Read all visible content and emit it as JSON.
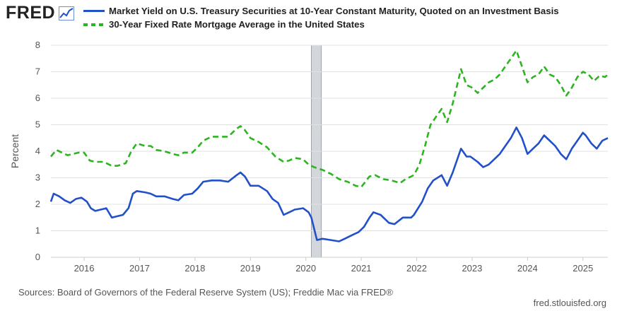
{
  "branding": {
    "logo_text": "FRED",
    "logo_icon": "line-chart-icon"
  },
  "legend": [
    {
      "label": "Market Yield on U.S. Treasury Securities at 10-Year Constant Maturity, Quoted on an Investment Basis",
      "style": "solid",
      "color": "#2150c8"
    },
    {
      "label": "30-Year Fixed Rate Mortgage Average in the United States",
      "style": "dashed",
      "color": "#2bb51f"
    }
  ],
  "footer": {
    "sources": "Sources: Board of Governors of the Federal Reserve System (US); Freddie Mac via FRED®",
    "site": "fred.stlouisfed.org"
  },
  "chart_data": {
    "type": "line",
    "ylabel": "Percent",
    "ylim": [
      0,
      8
    ],
    "xlim": [
      2015.4,
      2025.45
    ],
    "yticks": [
      0,
      1,
      2,
      3,
      4,
      5,
      6,
      7,
      8
    ],
    "xticks": [
      2016,
      2017,
      2018,
      2019,
      2020,
      2021,
      2022,
      2023,
      2024,
      2025
    ],
    "grid": "horizontal",
    "legend_position": "top",
    "recession_shading": [
      2020.1,
      2020.28
    ],
    "series": [
      {
        "name": "Market Yield on U.S. Treasury Securities at 10-Year Constant Maturity, Quoted on an Investment Basis",
        "color": "#2150c8",
        "style": "solid",
        "points": [
          [
            2015.4,
            2.1
          ],
          [
            2015.45,
            2.4
          ],
          [
            2015.55,
            2.3
          ],
          [
            2015.65,
            2.15
          ],
          [
            2015.75,
            2.05
          ],
          [
            2015.85,
            2.2
          ],
          [
            2015.95,
            2.25
          ],
          [
            2016.05,
            2.1
          ],
          [
            2016.12,
            1.85
          ],
          [
            2016.2,
            1.75
          ],
          [
            2016.3,
            1.8
          ],
          [
            2016.4,
            1.85
          ],
          [
            2016.5,
            1.5
          ],
          [
            2016.6,
            1.55
          ],
          [
            2016.7,
            1.6
          ],
          [
            2016.8,
            1.85
          ],
          [
            2016.88,
            2.4
          ],
          [
            2016.95,
            2.5
          ],
          [
            2017.1,
            2.45
          ],
          [
            2017.2,
            2.4
          ],
          [
            2017.3,
            2.3
          ],
          [
            2017.45,
            2.3
          ],
          [
            2017.6,
            2.2
          ],
          [
            2017.7,
            2.15
          ],
          [
            2017.8,
            2.35
          ],
          [
            2017.95,
            2.4
          ],
          [
            2018.05,
            2.6
          ],
          [
            2018.15,
            2.85
          ],
          [
            2018.3,
            2.9
          ],
          [
            2018.45,
            2.9
          ],
          [
            2018.6,
            2.85
          ],
          [
            2018.75,
            3.1
          ],
          [
            2018.82,
            3.2
          ],
          [
            2018.9,
            3.05
          ],
          [
            2019.0,
            2.7
          ],
          [
            2019.15,
            2.7
          ],
          [
            2019.3,
            2.5
          ],
          [
            2019.4,
            2.2
          ],
          [
            2019.5,
            2.05
          ],
          [
            2019.6,
            1.6
          ],
          [
            2019.7,
            1.7
          ],
          [
            2019.8,
            1.8
          ],
          [
            2019.95,
            1.85
          ],
          [
            2020.05,
            1.7
          ],
          [
            2020.1,
            1.5
          ],
          [
            2020.2,
            0.65
          ],
          [
            2020.3,
            0.7
          ],
          [
            2020.45,
            0.65
          ],
          [
            2020.6,
            0.6
          ],
          [
            2020.7,
            0.7
          ],
          [
            2020.85,
            0.85
          ],
          [
            2020.95,
            0.95
          ],
          [
            2021.05,
            1.15
          ],
          [
            2021.15,
            1.5
          ],
          [
            2021.22,
            1.7
          ],
          [
            2021.35,
            1.6
          ],
          [
            2021.5,
            1.3
          ],
          [
            2021.6,
            1.25
          ],
          [
            2021.75,
            1.5
          ],
          [
            2021.9,
            1.5
          ],
          [
            2021.95,
            1.6
          ],
          [
            2022.1,
            2.1
          ],
          [
            2022.2,
            2.6
          ],
          [
            2022.3,
            2.9
          ],
          [
            2022.45,
            3.1
          ],
          [
            2022.55,
            2.7
          ],
          [
            2022.65,
            3.2
          ],
          [
            2022.8,
            4.1
          ],
          [
            2022.9,
            3.8
          ],
          [
            2022.97,
            3.8
          ],
          [
            2023.1,
            3.6
          ],
          [
            2023.2,
            3.4
          ],
          [
            2023.3,
            3.5
          ],
          [
            2023.4,
            3.7
          ],
          [
            2023.5,
            3.9
          ],
          [
            2023.6,
            4.2
          ],
          [
            2023.7,
            4.5
          ],
          [
            2023.8,
            4.9
          ],
          [
            2023.9,
            4.5
          ],
          [
            2024.0,
            3.9
          ],
          [
            2024.1,
            4.1
          ],
          [
            2024.2,
            4.3
          ],
          [
            2024.3,
            4.6
          ],
          [
            2024.4,
            4.4
          ],
          [
            2024.5,
            4.2
          ],
          [
            2024.6,
            3.9
          ],
          [
            2024.7,
            3.7
          ],
          [
            2024.8,
            4.1
          ],
          [
            2024.9,
            4.4
          ],
          [
            2025.0,
            4.7
          ],
          [
            2025.05,
            4.6
          ],
          [
            2025.15,
            4.3
          ],
          [
            2025.25,
            4.1
          ],
          [
            2025.35,
            4.4
          ],
          [
            2025.45,
            4.5
          ]
        ]
      },
      {
        "name": "30-Year Fixed Rate Mortgage Average in the United States",
        "color": "#2bb51f",
        "style": "dashed",
        "points": [
          [
            2015.4,
            3.8
          ],
          [
            2015.5,
            4.05
          ],
          [
            2015.6,
            3.95
          ],
          [
            2015.7,
            3.85
          ],
          [
            2015.8,
            3.9
          ],
          [
            2015.9,
            3.95
          ],
          [
            2016.0,
            3.95
          ],
          [
            2016.1,
            3.65
          ],
          [
            2016.2,
            3.6
          ],
          [
            2016.35,
            3.6
          ],
          [
            2016.5,
            3.45
          ],
          [
            2016.6,
            3.45
          ],
          [
            2016.75,
            3.55
          ],
          [
            2016.85,
            4.0
          ],
          [
            2016.95,
            4.3
          ],
          [
            2017.1,
            4.2
          ],
          [
            2017.2,
            4.2
          ],
          [
            2017.3,
            4.05
          ],
          [
            2017.45,
            4.0
          ],
          [
            2017.6,
            3.9
          ],
          [
            2017.7,
            3.85
          ],
          [
            2017.8,
            3.95
          ],
          [
            2017.95,
            3.95
          ],
          [
            2018.05,
            4.15
          ],
          [
            2018.15,
            4.4
          ],
          [
            2018.3,
            4.55
          ],
          [
            2018.45,
            4.55
          ],
          [
            2018.6,
            4.55
          ],
          [
            2018.75,
            4.85
          ],
          [
            2018.82,
            4.95
          ],
          [
            2018.9,
            4.8
          ],
          [
            2019.0,
            4.5
          ],
          [
            2019.15,
            4.35
          ],
          [
            2019.3,
            4.15
          ],
          [
            2019.45,
            3.8
          ],
          [
            2019.6,
            3.6
          ],
          [
            2019.7,
            3.65
          ],
          [
            2019.8,
            3.75
          ],
          [
            2019.95,
            3.7
          ],
          [
            2020.05,
            3.5
          ],
          [
            2020.15,
            3.4
          ],
          [
            2020.3,
            3.3
          ],
          [
            2020.45,
            3.15
          ],
          [
            2020.6,
            2.95
          ],
          [
            2020.75,
            2.85
          ],
          [
            2020.9,
            2.7
          ],
          [
            2021.0,
            2.65
          ],
          [
            2021.15,
            3.05
          ],
          [
            2021.25,
            3.1
          ],
          [
            2021.4,
            2.95
          ],
          [
            2021.55,
            2.9
          ],
          [
            2021.7,
            2.8
          ],
          [
            2021.8,
            2.95
          ],
          [
            2021.95,
            3.1
          ],
          [
            2022.05,
            3.5
          ],
          [
            2022.15,
            4.2
          ],
          [
            2022.25,
            5.0
          ],
          [
            2022.35,
            5.3
          ],
          [
            2022.45,
            5.6
          ],
          [
            2022.55,
            5.1
          ],
          [
            2022.65,
            5.8
          ],
          [
            2022.8,
            7.1
          ],
          [
            2022.9,
            6.5
          ],
          [
            2023.0,
            6.4
          ],
          [
            2023.1,
            6.2
          ],
          [
            2023.2,
            6.4
          ],
          [
            2023.3,
            6.6
          ],
          [
            2023.4,
            6.7
          ],
          [
            2023.5,
            6.9
          ],
          [
            2023.6,
            7.2
          ],
          [
            2023.7,
            7.5
          ],
          [
            2023.8,
            7.8
          ],
          [
            2023.9,
            7.2
          ],
          [
            2024.0,
            6.6
          ],
          [
            2024.1,
            6.8
          ],
          [
            2024.2,
            6.9
          ],
          [
            2024.3,
            7.2
          ],
          [
            2024.4,
            6.9
          ],
          [
            2024.5,
            6.8
          ],
          [
            2024.6,
            6.5
          ],
          [
            2024.7,
            6.1
          ],
          [
            2024.8,
            6.4
          ],
          [
            2024.9,
            6.8
          ],
          [
            2025.0,
            7.0
          ],
          [
            2025.1,
            6.9
          ],
          [
            2025.2,
            6.65
          ],
          [
            2025.3,
            6.85
          ],
          [
            2025.4,
            6.8
          ],
          [
            2025.45,
            6.9
          ]
        ]
      }
    ]
  }
}
